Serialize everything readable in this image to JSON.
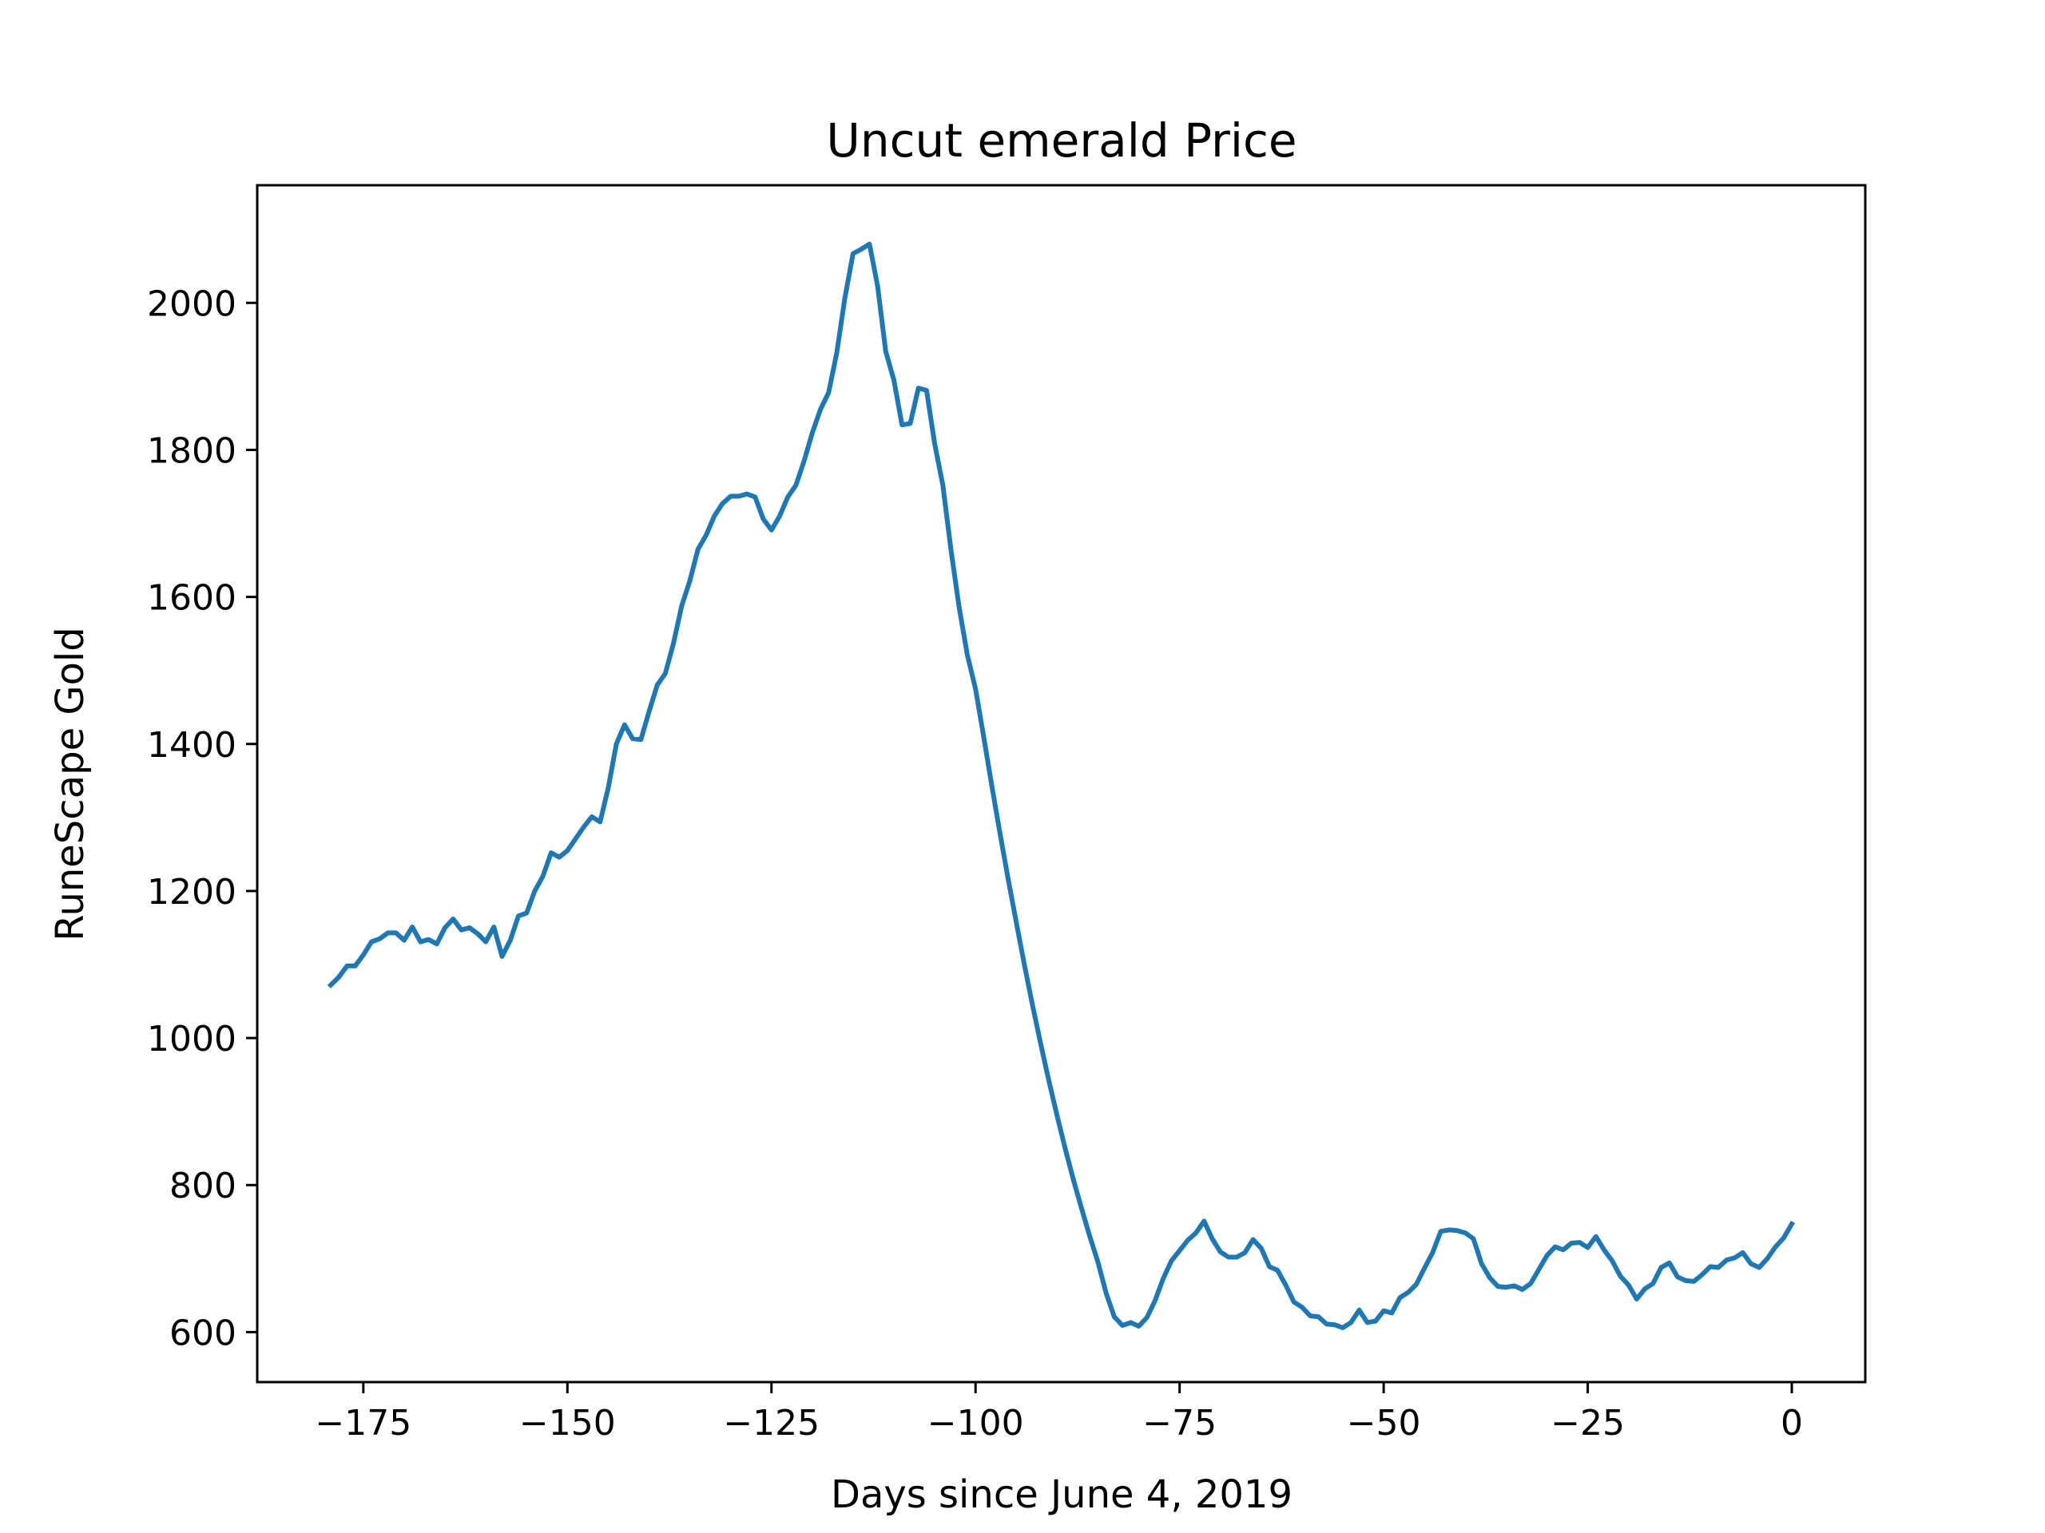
{
  "chart_data": {
    "type": "line",
    "title": "Uncut emerald Price",
    "xlabel": "Days since June 4, 2019",
    "ylabel": "RuneScape Gold",
    "xlim": [
      -188,
      9
    ],
    "ylim": [
      532,
      2160
    ],
    "xticks": [
      -175,
      -150,
      -125,
      -100,
      -75,
      -50,
      -25,
      0
    ],
    "xtick_labels": [
      "−175",
      "−150",
      "−125",
      "−100",
      "−75",
      "−50",
      "−25",
      "0"
    ],
    "yticks": [
      600,
      800,
      1000,
      1200,
      1400,
      1600,
      1800,
      2000
    ],
    "ytick_labels": [
      "600",
      "800",
      "1000",
      "1200",
      "1400",
      "1600",
      "1800",
      "2000"
    ],
    "grid": false,
    "line_color": "#1f77b4",
    "series": [
      {
        "x": [
          -179,
          -178,
          -177,
          -176,
          -175,
          -174,
          -173,
          -172,
          -171,
          -170,
          -169,
          -168,
          -167,
          -166,
          -165,
          -164,
          -163,
          -162,
          -161,
          -160,
          -159,
          -158,
          -157,
          -156,
          -155,
          -154,
          -153,
          -152,
          -151,
          -150,
          -149,
          -148,
          -147,
          -146,
          -145,
          -144,
          -143,
          -142,
          -141,
          -140,
          -139,
          -138,
          -137,
          -136,
          -135,
          -134,
          -133,
          -132,
          -131,
          -130,
          -129,
          -128,
          -127,
          -126,
          -125,
          -124,
          -123,
          -122,
          -121,
          -120,
          -119,
          -118,
          -117,
          -116,
          -115,
          -114,
          -113,
          -112,
          -111,
          -110,
          -109,
          -108,
          -107,
          -106,
          -105,
          -104,
          -103,
          -102,
          -101,
          -100,
          -99,
          -98,
          -97,
          -96,
          -95,
          -94,
          -93,
          -92,
          -91,
          -90,
          -89,
          -88,
          -87,
          -86,
          -85,
          -84,
          -83,
          -82,
          -81,
          -80,
          -79,
          -78,
          -77,
          -76,
          -75,
          -74,
          -73,
          -72,
          -71,
          -70,
          -69,
          -68,
          -67,
          -66,
          -65,
          -64,
          -63,
          -62,
          -61,
          -60,
          -59,
          -58,
          -57,
          -56,
          -55,
          -54,
          -53,
          -52,
          -51,
          -50,
          -49,
          -48,
          -47,
          -46,
          -45,
          -44,
          -43,
          -42,
          -41,
          -40,
          -39,
          -38,
          -37,
          -36,
          -35,
          -34,
          -33,
          -32,
          -31,
          -30,
          -29,
          -28,
          -27,
          -26,
          -25,
          -24,
          -23,
          -22,
          -21,
          -20,
          -19,
          -18,
          -17,
          -16,
          -15,
          -14,
          -13,
          -12,
          -11,
          -10,
          -9,
          -8,
          -7,
          -6,
          -5,
          -4,
          -3,
          -2,
          -1,
          0
        ],
        "values": [
          1072,
          1083,
          1098,
          1098,
          1113,
          1131,
          1135,
          1143,
          1143,
          1133,
          1151,
          1131,
          1134,
          1128,
          1150,
          1162,
          1147,
          1150,
          1142,
          1131,
          1151,
          1111,
          1133,
          1166,
          1170,
          1200,
          1220,
          1252,
          1246,
          1255,
          1271,
          1287,
          1301,
          1294,
          1340,
          1400,
          1426,
          1407,
          1406,
          1444,
          1480,
          1496,
          1537,
          1588,
          1622,
          1665,
          1684,
          1710,
          1727,
          1737,
          1737,
          1740,
          1736,
          1706,
          1691,
          1710,
          1736,
          1752,
          1785,
          1823,
          1855,
          1878,
          1932,
          2007,
          2067,
          2073,
          2080,
          2023,
          1934,
          1895,
          1834,
          1836,
          1884,
          1881,
          1808,
          1752,
          1663,
          1585,
          1521,
          1475,
          1410,
          1343,
          1278,
          1216,
          1157,
          1099,
          1044,
          991,
          941,
          894,
          849,
          807,
          768,
          730,
          695,
          653,
          621,
          609,
          613,
          608,
          620,
          643,
          673,
          697,
          711,
          725,
          735,
          751,
          727,
          709,
          702,
          702,
          708,
          726,
          714,
          689,
          684,
          664,
          641,
          634,
          622,
          621,
          611,
          610,
          606,
          613,
          630,
          613,
          615,
          629,
          626,
          647,
          654,
          665,
          687,
          708,
          737,
          739,
          738,
          735,
          727,
          693,
          674,
          662,
          661,
          663,
          658,
          666,
          685,
          704,
          716,
          712,
          721,
          722,
          715,
          730,
          712,
          697,
          676,
          664,
          645,
          659,
          666,
          688,
          694,
          675,
          670,
          669,
          678,
          689,
          688,
          698,
          701,
          708,
          693,
          688,
          700,
          716,
          728,
          747
        ]
      }
    ]
  }
}
